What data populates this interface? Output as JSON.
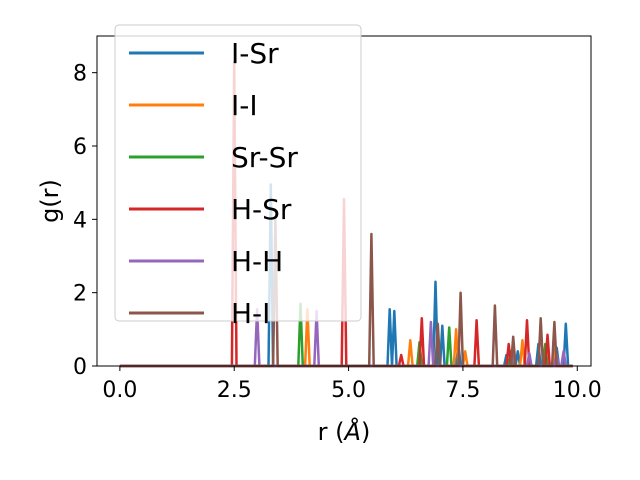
{
  "chart_data": {
    "type": "line",
    "xlabel_prefix": "r (",
    "xlabel_unit": "Å",
    "xlabel_suffix": ")",
    "ylabel": "g(r)",
    "xlim": [
      -0.5,
      10.3
    ],
    "ylim": [
      0,
      9
    ],
    "x_ticks": [
      0.0,
      2.5,
      5.0,
      7.5,
      10.0
    ],
    "x_tick_labels": [
      "0.0",
      "2.5",
      "5.0",
      "7.5",
      "10.0"
    ],
    "y_ticks": [
      0,
      2,
      4,
      6,
      8
    ],
    "y_tick_labels": [
      "0",
      "2",
      "4",
      "6",
      "8"
    ],
    "grid": false,
    "legend_position": "upper-left",
    "series": [
      {
        "name": "I-Sr",
        "color": "#1f77b4",
        "peaks": [
          [
            3.3,
            4.95
          ],
          [
            5.9,
            1.55
          ],
          [
            6.0,
            1.5
          ],
          [
            6.9,
            2.3
          ],
          [
            7.05,
            1.1
          ],
          [
            7.4,
            0.6
          ],
          [
            8.45,
            0.3
          ],
          [
            8.7,
            0.4
          ],
          [
            9.15,
            0.6
          ],
          [
            9.55,
            0.5
          ],
          [
            9.75,
            1.15
          ]
        ]
      },
      {
        "name": "I-I",
        "color": "#ff7f0e",
        "peaks": [
          [
            4.1,
            1.55
          ],
          [
            6.35,
            0.7
          ],
          [
            7.35,
            1.0
          ],
          [
            7.55,
            0.4
          ],
          [
            8.8,
            0.7
          ],
          [
            9.5,
            0.45
          ]
        ]
      },
      {
        "name": "Sr-Sr",
        "color": "#2ca02c",
        "peaks": [
          [
            3.95,
            1.7
          ],
          [
            6.55,
            0.65
          ],
          [
            7.2,
            1.05
          ],
          [
            8.55,
            0.4
          ],
          [
            9.3,
            0.6
          ]
        ]
      },
      {
        "name": "H-Sr",
        "color": "#d62728",
        "peaks": [
          [
            2.5,
            8.3
          ],
          [
            4.9,
            4.55
          ],
          [
            6.15,
            0.3
          ],
          [
            6.6,
            1.3
          ],
          [
            7.8,
            1.25
          ],
          [
            8.5,
            0.6
          ],
          [
            8.9,
            1.25
          ],
          [
            9.35,
            0.85
          ]
        ]
      },
      {
        "name": "H-H",
        "color": "#9467bd",
        "peaks": [
          [
            3.0,
            1.55
          ],
          [
            4.3,
            1.5
          ],
          [
            6.8,
            1.2
          ],
          [
            8.6,
            0.35
          ],
          [
            8.95,
            0.35
          ],
          [
            9.55,
            0.3
          ],
          [
            9.7,
            0.4
          ]
        ]
      },
      {
        "name": "H-I",
        "color": "#8c564b",
        "peaks": [
          [
            3.4,
            4.0
          ],
          [
            5.5,
            3.6
          ],
          [
            6.95,
            1.15
          ],
          [
            7.45,
            2.0
          ],
          [
            8.2,
            1.65
          ],
          [
            8.6,
            0.8
          ],
          [
            9.2,
            1.3
          ],
          [
            9.5,
            1.2
          ]
        ]
      }
    ]
  }
}
